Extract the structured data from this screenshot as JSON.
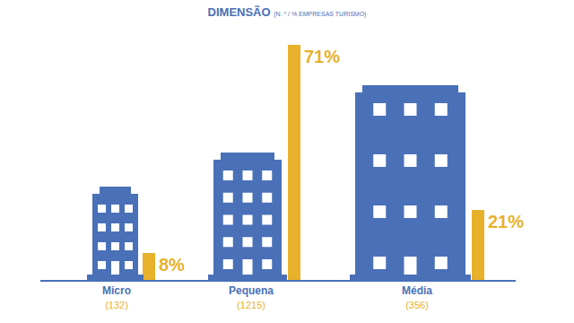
{
  "chart_data": {
    "type": "bar",
    "title": "DIMENSÃO",
    "subtitle": "(N. º / % EMPRESAS TURISMO)",
    "categories": [
      "Micro",
      "Pequena",
      "Média"
    ],
    "count_labels": [
      "(132)",
      "(1215)",
      "(356)"
    ],
    "values": [
      8,
      71,
      21
    ],
    "value_labels": [
      "8%",
      "71%",
      "21%"
    ],
    "color": "#e8b12c",
    "ylim": [
      0,
      75
    ],
    "data_labels": true,
    "tick_labels": "x",
    "grid": false
  }
}
